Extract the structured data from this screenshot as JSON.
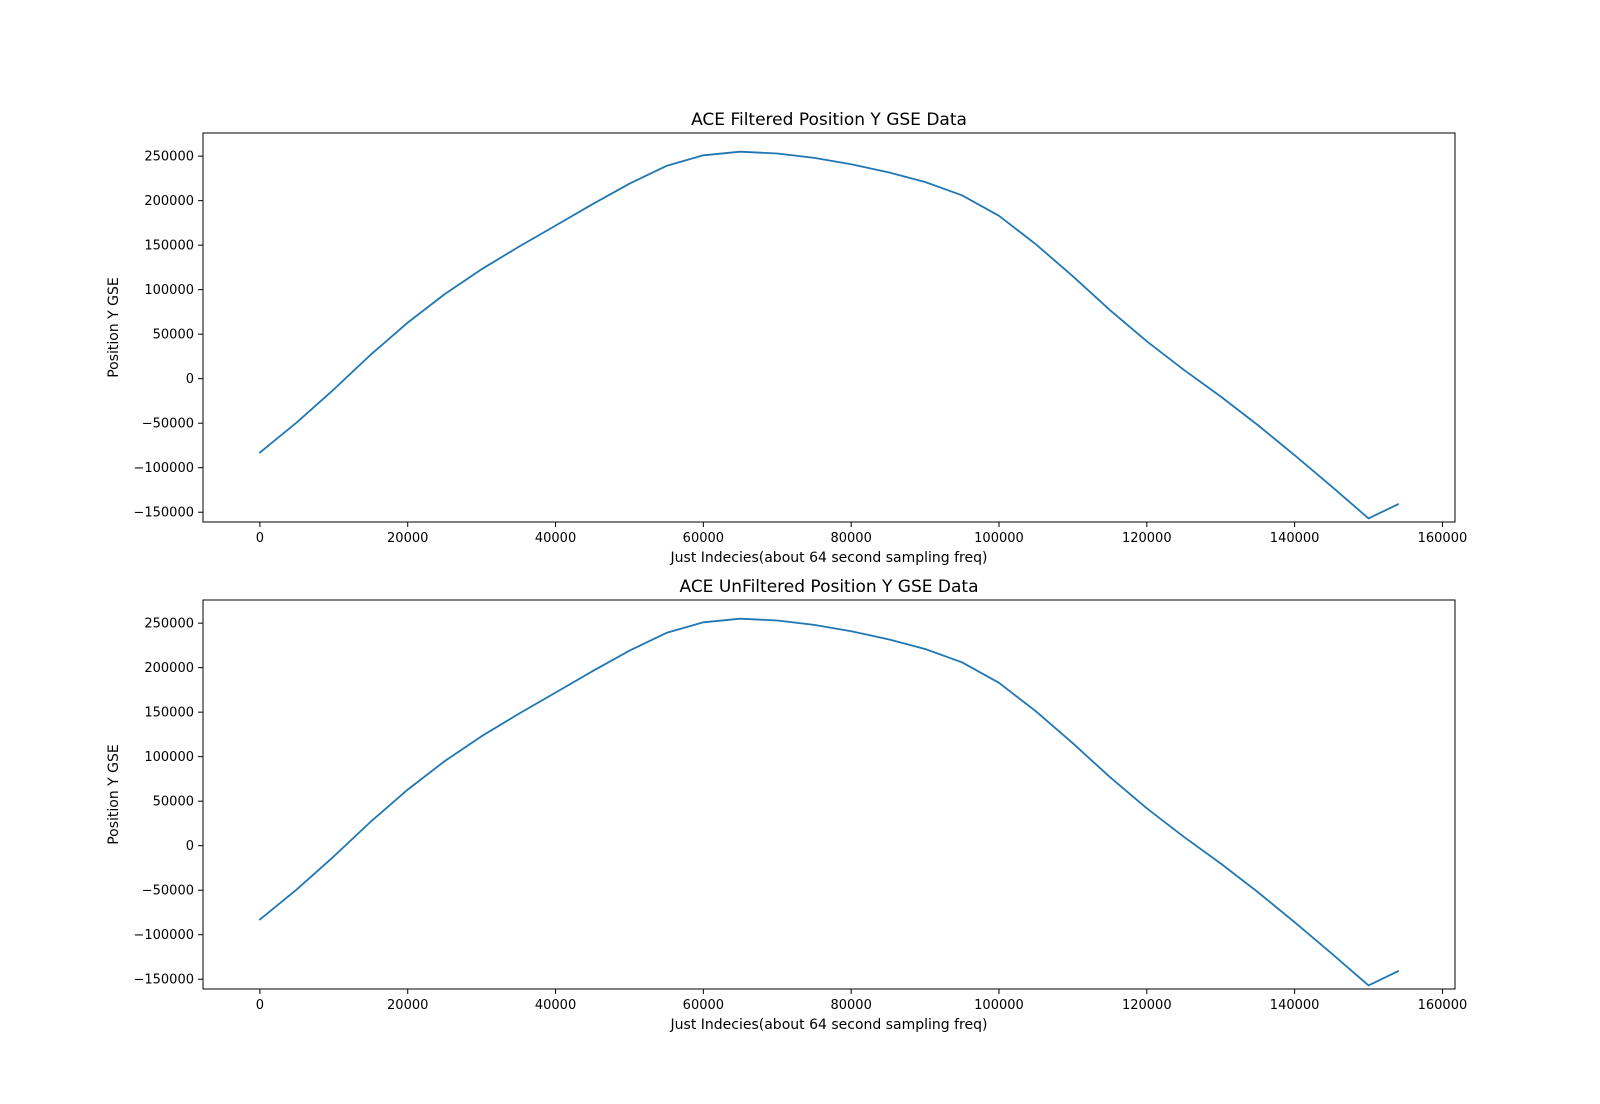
{
  "chart_data": [
    {
      "type": "line",
      "title": "ACE Filtered Position Y GSE Data",
      "xlabel": "Just Indecies(about 64 second sampling freq)",
      "ylabel": "Position Y GSE",
      "xlim": [
        -7700,
        161700
      ],
      "ylim": [
        -161000,
        276000
      ],
      "xticks": [
        0,
        20000,
        40000,
        60000,
        80000,
        100000,
        120000,
        140000,
        160000
      ],
      "xtick_labels": [
        "0",
        "20000",
        "40000",
        "60000",
        "80000",
        "100000",
        "120000",
        "140000",
        "160000"
      ],
      "yticks": [
        -150000,
        -100000,
        -50000,
        0,
        50000,
        100000,
        150000,
        200000,
        250000
      ],
      "ytick_labels": [
        "−150000",
        "−100000",
        "−50000",
        "0",
        "50000",
        "100000",
        "150000",
        "200000",
        "250000"
      ],
      "grid": false,
      "color": "#1f77b4",
      "x": [
        0,
        5000,
        10000,
        15000,
        20000,
        25000,
        30000,
        35000,
        40000,
        45000,
        50000,
        55000,
        60000,
        65000,
        70000,
        75000,
        80000,
        85000,
        90000,
        95000,
        100000,
        105000,
        110000,
        115000,
        120000,
        125000,
        130000,
        135000,
        140000,
        145000,
        150000,
        154000
      ],
      "y": [
        -83000,
        -49000,
        -12000,
        27000,
        63000,
        95000,
        123000,
        148000,
        172000,
        196000,
        219000,
        239000,
        251000,
        255000,
        253000,
        248000,
        241000,
        232000,
        221000,
        206000,
        183000,
        151000,
        115000,
        77000,
        42000,
        10000,
        -20000,
        -52000,
        -86000,
        -121000,
        -157000,
        -141000
      ]
    },
    {
      "type": "line",
      "title": "ACE UnFiltered Position Y GSE Data",
      "xlabel": "Just Indecies(about 64 second sampling freq)",
      "ylabel": "Position Y GSE",
      "xlim": [
        -7700,
        161700
      ],
      "ylim": [
        -161000,
        276000
      ],
      "xticks": [
        0,
        20000,
        40000,
        60000,
        80000,
        100000,
        120000,
        140000,
        160000
      ],
      "xtick_labels": [
        "0",
        "20000",
        "40000",
        "60000",
        "80000",
        "100000",
        "120000",
        "140000",
        "160000"
      ],
      "yticks": [
        -150000,
        -100000,
        -50000,
        0,
        50000,
        100000,
        150000,
        200000,
        250000
      ],
      "ytick_labels": [
        "−150000",
        "−100000",
        "−50000",
        "0",
        "50000",
        "100000",
        "150000",
        "200000",
        "250000"
      ],
      "grid": false,
      "color": "#1f77b4",
      "x": [
        0,
        5000,
        10000,
        15000,
        20000,
        25000,
        30000,
        35000,
        40000,
        45000,
        50000,
        55000,
        60000,
        65000,
        70000,
        75000,
        80000,
        85000,
        90000,
        95000,
        100000,
        105000,
        110000,
        115000,
        120000,
        125000,
        130000,
        135000,
        140000,
        145000,
        150000,
        154000
      ],
      "y": [
        -83000,
        -49000,
        -12000,
        27000,
        63000,
        95000,
        123000,
        148000,
        172000,
        196000,
        219000,
        239000,
        251000,
        255000,
        253000,
        248000,
        241000,
        232000,
        221000,
        206000,
        183000,
        151000,
        115000,
        77000,
        42000,
        10000,
        -20000,
        -52000,
        -86000,
        -121000,
        -157000,
        -141000
      ]
    }
  ]
}
